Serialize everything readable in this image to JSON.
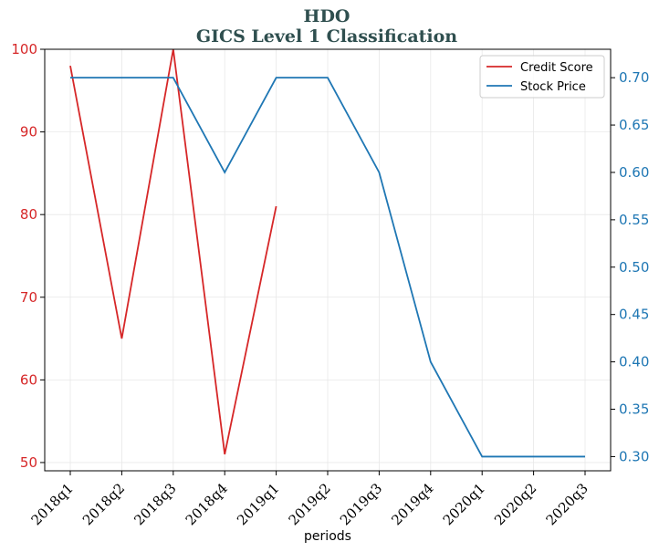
{
  "chart_data": {
    "type": "line",
    "title": "HDO",
    "subtitle": "GICS Level 1 Classification",
    "xlabel": "periods",
    "categories": [
      "2018q1",
      "2018q2",
      "2018q3",
      "2018q4",
      "2019q1",
      "2019q2",
      "2019q3",
      "2019q4",
      "2020q1",
      "2020q2",
      "2020q3"
    ],
    "series": [
      {
        "name": "Credit Score",
        "axis": "left",
        "color": "#d62728",
        "values": [
          98,
          65,
          100,
          51,
          81,
          null,
          null,
          null,
          null,
          null,
          null
        ]
      },
      {
        "name": "Stock Price",
        "axis": "right",
        "color": "#1f77b4",
        "values": [
          0.7,
          0.7,
          0.7,
          0.6,
          0.7,
          0.7,
          0.6,
          0.4,
          0.3,
          0.3,
          0.3
        ]
      }
    ],
    "y_left": {
      "range": [
        49,
        100
      ],
      "ticks": [
        50,
        60,
        70,
        80,
        90,
        100
      ],
      "tick_labels": [
        "50",
        "60",
        "70",
        "80",
        "90",
        "100"
      ],
      "color": "#d62728"
    },
    "y_right": {
      "range": [
        0.285,
        0.73
      ],
      "ticks": [
        0.3,
        0.35,
        0.4,
        0.45,
        0.5,
        0.55,
        0.6,
        0.65,
        0.7
      ],
      "tick_labels": [
        "0.30",
        "0.35",
        "0.40",
        "0.45",
        "0.50",
        "0.55",
        "0.60",
        "0.65",
        "0.70"
      ],
      "color": "#1f77b4"
    },
    "grid": true,
    "legend_position": "top-right",
    "title_color": "#2f4f4f"
  }
}
